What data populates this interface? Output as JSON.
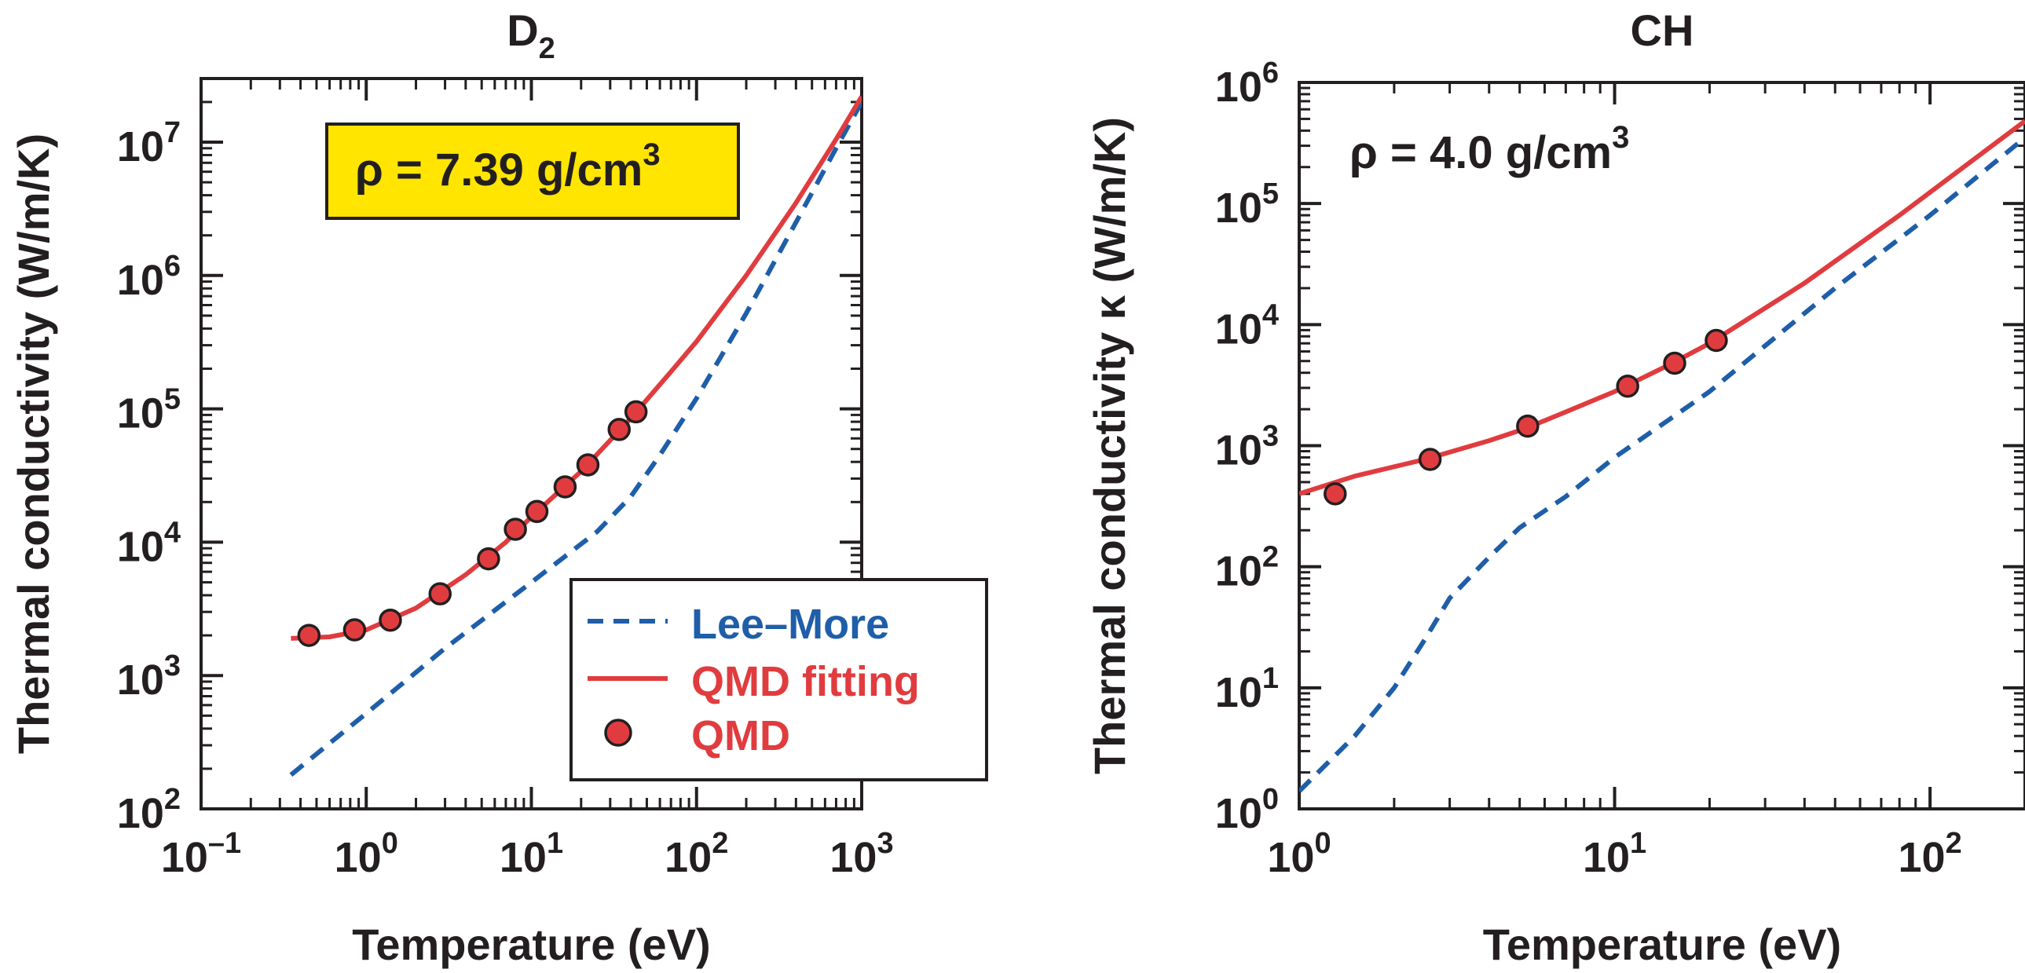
{
  "colors": {
    "lee_more": "#1f5ea8",
    "qmd": "#e03c3f",
    "text": "#231f20",
    "annotation_box": "#ffe500"
  },
  "chart_data": [
    {
      "type": "line",
      "title": "D",
      "title_subscript": "2",
      "xlabel": "Temperature (eV)",
      "ylabel": "Thermal conductivity (W/m/K)",
      "x_scale": "log",
      "y_scale": "log",
      "xlim": [
        0.1,
        1000
      ],
      "ylim": [
        100,
        30000000
      ],
      "x_ticks": [
        {
          "value": 0.1,
          "base": "10",
          "exp": "–1"
        },
        {
          "value": 1,
          "base": "10",
          "exp": "0"
        },
        {
          "value": 10,
          "base": "10",
          "exp": "1"
        },
        {
          "value": 100,
          "base": "10",
          "exp": "2"
        },
        {
          "value": 1000,
          "base": "10",
          "exp": "3"
        }
      ],
      "y_ticks": [
        {
          "value": 100,
          "base": "10",
          "exp": "2"
        },
        {
          "value": 1000,
          "base": "10",
          "exp": "3"
        },
        {
          "value": 10000,
          "base": "10",
          "exp": "4"
        },
        {
          "value": 100000,
          "base": "10",
          "exp": "5"
        },
        {
          "value": 1000000,
          "base": "10",
          "exp": "6"
        },
        {
          "value": 10000000,
          "base": "10",
          "exp": "7"
        }
      ],
      "annotation": {
        "prefix": "ρ = 7.39 g/cm",
        "sup": "3",
        "boxed": true
      },
      "legend_position": "bottom-right",
      "legend": [
        {
          "label": "Lee–More",
          "style": "dashed"
        },
        {
          "label": "QMD fitting",
          "style": "solid"
        },
        {
          "label": "QMD",
          "style": "marker"
        }
      ],
      "series": [
        {
          "name": "Lee–More",
          "style": "dashed",
          "points": [
            [
              0.35,
              180
            ],
            [
              1,
              520
            ],
            [
              3,
              1600
            ],
            [
              10,
              5000
            ],
            [
              25,
              12000
            ],
            [
              40,
              22000
            ],
            [
              60,
              45000
            ],
            [
              100,
              120000
            ],
            [
              200,
              520000
            ],
            [
              400,
              2500000
            ],
            [
              700,
              9000000
            ],
            [
              1000,
              20000000
            ]
          ]
        },
        {
          "name": "QMD fitting",
          "style": "solid",
          "points": [
            [
              0.35,
              1900
            ],
            [
              0.6,
              1950
            ],
            [
              1,
              2200
            ],
            [
              2,
              3200
            ],
            [
              4,
              5700
            ],
            [
              7,
              10000
            ],
            [
              10,
              15500
            ],
            [
              20,
              34000
            ],
            [
              40,
              85000
            ],
            [
              70,
              190000
            ],
            [
              100,
              320000
            ],
            [
              200,
              1000000
            ],
            [
              400,
              3500000
            ],
            [
              700,
              10500000
            ],
            [
              1000,
              22000000
            ]
          ]
        },
        {
          "name": "QMD",
          "style": "marker",
          "points": [
            [
              0.45,
              2000
            ],
            [
              0.85,
              2200
            ],
            [
              1.4,
              2600
            ],
            [
              2.8,
              4100
            ],
            [
              5.5,
              7500
            ],
            [
              8,
              12500
            ],
            [
              10.8,
              17000
            ],
            [
              16,
              26000
            ],
            [
              22,
              38000
            ],
            [
              34,
              70000
            ],
            [
              43,
              95000
            ]
          ]
        }
      ]
    },
    {
      "type": "line",
      "title": "CH",
      "xlabel": "Temperature (eV)",
      "ylabel": "Thermal conductivity κ (W/m/K)",
      "x_scale": "log",
      "y_scale": "log",
      "xlim": [
        1,
        200
      ],
      "ylim": [
        1,
        1000000
      ],
      "x_ticks": [
        {
          "value": 1,
          "base": "10",
          "exp": "0"
        },
        {
          "value": 10,
          "base": "10",
          "exp": "1"
        },
        {
          "value": 100,
          "base": "10",
          "exp": "2"
        }
      ],
      "y_ticks": [
        {
          "value": 1,
          "base": "10",
          "exp": "0"
        },
        {
          "value": 10,
          "base": "10",
          "exp": "1"
        },
        {
          "value": 100,
          "base": "10",
          "exp": "2"
        },
        {
          "value": 1000,
          "base": "10",
          "exp": "3"
        },
        {
          "value": 10000,
          "base": "10",
          "exp": "4"
        },
        {
          "value": 100000,
          "base": "10",
          "exp": "5"
        },
        {
          "value": 1000000,
          "base": "10",
          "exp": "6"
        }
      ],
      "annotation": {
        "prefix": "ρ = 4.0 g/cm",
        "sup": "3",
        "boxed": false
      },
      "series": [
        {
          "name": "Lee–More",
          "style": "dashed",
          "points": [
            [
              1,
              1.4
            ],
            [
              1.5,
              4
            ],
            [
              2,
              10
            ],
            [
              2.5,
              25
            ],
            [
              3,
              55
            ],
            [
              4,
              120
            ],
            [
              5,
              210
            ],
            [
              7,
              380
            ],
            [
              10,
              800
            ],
            [
              20,
              2800
            ],
            [
              50,
              20000
            ],
            [
              100,
              80000
            ],
            [
              200,
              350000
            ]
          ]
        },
        {
          "name": "QMD fitting",
          "style": "solid",
          "points": [
            [
              1,
              400
            ],
            [
              1.5,
              560
            ],
            [
              2.5,
              770
            ],
            [
              4,
              1100
            ],
            [
              5.2,
              1380
            ],
            [
              7,
              1900
            ],
            [
              10,
              2800
            ],
            [
              15,
              4700
            ],
            [
              20,
              7000
            ],
            [
              40,
              22000
            ],
            [
              80,
              80000
            ],
            [
              200,
              480000
            ]
          ]
        },
        {
          "name": "QMD",
          "style": "marker",
          "points": [
            [
              1.3,
              400
            ],
            [
              2.6,
              770
            ],
            [
              5.3,
              1450
            ],
            [
              11,
              3100
            ],
            [
              15.5,
              4800
            ],
            [
              21,
              7400
            ]
          ]
        }
      ]
    }
  ]
}
